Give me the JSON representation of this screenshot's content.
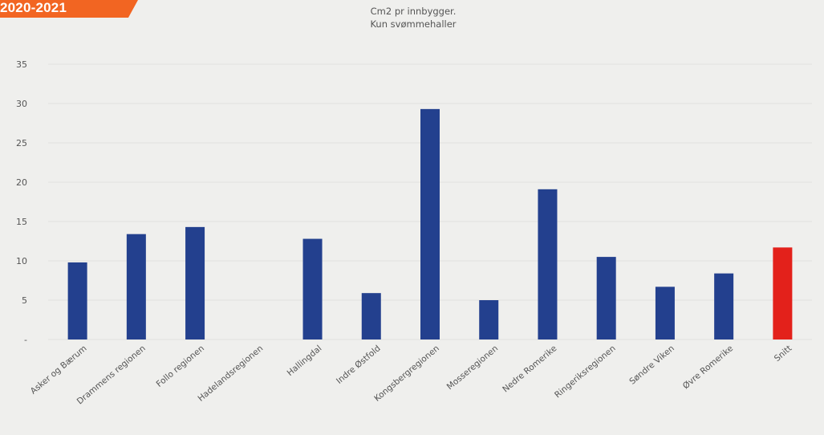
{
  "badge": {
    "text": "2020-2021",
    "color": "#f26522"
  },
  "chart_data": {
    "type": "bar",
    "title": "Cm2 pr innbygger.",
    "subtitle": "Kun svømmehaller",
    "xlabel": "",
    "ylabel": "",
    "ylim": [
      0,
      35
    ],
    "yticks": [
      0,
      5,
      10,
      15,
      20,
      25,
      30,
      35
    ],
    "ytick_labels": [
      "-",
      "5",
      "10",
      "15",
      "20",
      "25",
      "30",
      "35"
    ],
    "grid": true,
    "legend": "none",
    "categories": [
      "Asker og Bærum",
      "Drammens regionen",
      "Follo regionen",
      "Hadelandsregionen",
      "Hallingdal",
      "Indre Østfold",
      "Kongsbergregionen",
      "Mosseregionen",
      "Nedre Romerike",
      "Ringeriksregionen",
      "Søndre Viken",
      "Øvre Romerike",
      "Snitt"
    ],
    "values": [
      9.8,
      13.4,
      14.3,
      0,
      12.8,
      5.9,
      29.3,
      5.0,
      19.1,
      10.5,
      6.7,
      8.4,
      11.7
    ],
    "colors": [
      "#23408e",
      "#23408e",
      "#23408e",
      "#23408e",
      "#23408e",
      "#23408e",
      "#23408e",
      "#23408e",
      "#23408e",
      "#23408e",
      "#23408e",
      "#23408e",
      "#e3211b"
    ]
  }
}
